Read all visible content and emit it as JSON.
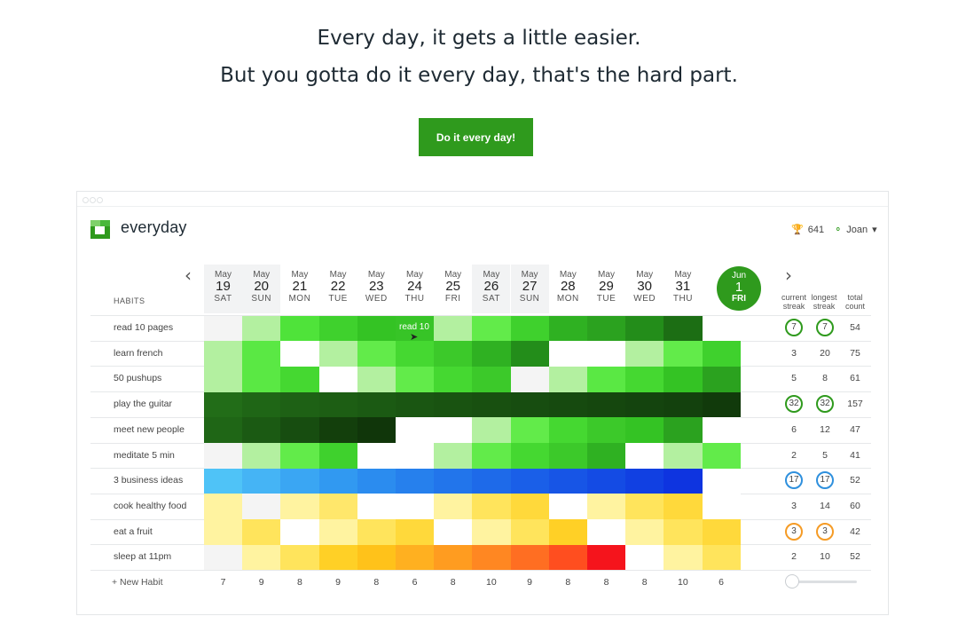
{
  "hero": {
    "line1": "Every day, it gets a little easier.",
    "line2": "But you gotta do it every day, that's the hard part.",
    "cta_label": "Do it every day!"
  },
  "app": {
    "name": "everyday",
    "score": "641",
    "user": "Joan",
    "icons": {
      "trophy": "trophy-icon",
      "user": "user-icon",
      "dropdown": "chevron-down-icon",
      "prev": "chevron-left-icon",
      "next": "chevron-right-icon"
    }
  },
  "header": {
    "habits_label": "HABITS",
    "current_streak": [
      "current",
      "streak"
    ],
    "longest_streak": [
      "longest",
      "streak"
    ],
    "total_count": [
      "total",
      "count"
    ]
  },
  "dates": [
    {
      "mon": "May",
      "day": "19",
      "dow": "SAT",
      "weekend": true
    },
    {
      "mon": "May",
      "day": "20",
      "dow": "SUN",
      "weekend": true
    },
    {
      "mon": "May",
      "day": "21",
      "dow": "MON",
      "weekend": false
    },
    {
      "mon": "May",
      "day": "22",
      "dow": "TUE",
      "weekend": false
    },
    {
      "mon": "May",
      "day": "23",
      "dow": "WED",
      "weekend": false
    },
    {
      "mon": "May",
      "day": "24",
      "dow": "THU",
      "weekend": false
    },
    {
      "mon": "May",
      "day": "25",
      "dow": "FRI",
      "weekend": false
    },
    {
      "mon": "May",
      "day": "26",
      "dow": "SAT",
      "weekend": true
    },
    {
      "mon": "May",
      "day": "27",
      "dow": "SUN",
      "weekend": true
    },
    {
      "mon": "May",
      "day": "28",
      "dow": "MON",
      "weekend": false
    },
    {
      "mon": "May",
      "day": "29",
      "dow": "TUE",
      "weekend": false
    },
    {
      "mon": "May",
      "day": "30",
      "dow": "WED",
      "weekend": false
    },
    {
      "mon": "May",
      "day": "31",
      "dow": "THU",
      "weekend": false
    },
    {
      "mon": "Jun",
      "day": "1",
      "dow": "FRI",
      "today": true
    }
  ],
  "habits": [
    {
      "name": "read 10 pages",
      "current": "7",
      "longest": "7",
      "total": "54",
      "ring": "#2f9a1d",
      "cells": [
        "#f4f4f4",
        "#b3f0a0",
        "#4fe33a",
        "#3fd12d",
        "#34c324",
        "#37c427",
        "#b3f0a0",
        "#62eb4a",
        "#3fd12d",
        "#2fb122",
        "#2ba21f",
        "#238d1a",
        "#1c6e14",
        null
      ]
    },
    {
      "name": "learn french",
      "current": "3",
      "longest": "20",
      "total": "75",
      "cells": [
        "#b3f0a0",
        "#5ae844",
        "#ffffff",
        "#b3f0a0",
        "#62eb4a",
        "#45d831",
        "#3cc92a",
        "#2fb122",
        "#238d1a",
        "#ffffff",
        "#ffffff",
        "#b3f0a0",
        "#62eb4a",
        "#3fd12d"
      ]
    },
    {
      "name": "50 pushups",
      "current": "5",
      "longest": "8",
      "total": "61",
      "cells": [
        "#b3f0a0",
        "#5ae844",
        "#45d831",
        "#ffffff",
        "#b3f0a0",
        "#62eb4a",
        "#45d831",
        "#3cc92a",
        "#f4f4f4",
        "#b3f0a0",
        "#5ae844",
        "#45d831",
        "#34c324",
        "#2ba21f"
      ]
    },
    {
      "name": "play the guitar",
      "current": "32",
      "longest": "32",
      "total": "157",
      "ring": "#2f9a1d",
      "cells": [
        "#226d18",
        "#1f6616",
        "#1e6115",
        "#1d5e14",
        "#1b5a13",
        "#1a5612",
        "#195311",
        "#185010",
        "#174d10",
        "#164a0f",
        "#15470e",
        "#14440e",
        "#13410d",
        "#113a0b"
      ]
    },
    {
      "name": "meet new people",
      "current": "6",
      "longest": "12",
      "total": "47",
      "cells": [
        "#1f6616",
        "#1b5a13",
        "#174d10",
        "#133f0c",
        "#10360a",
        "#ffffff",
        "#ffffff",
        "#b3f0a0",
        "#62eb4a",
        "#45d831",
        "#3cc92a",
        "#34c324",
        "#2ba21f",
        "#ffffff"
      ]
    },
    {
      "name": "meditate 5 min",
      "current": "2",
      "longest": "5",
      "total": "41",
      "cells": [
        "#f4f4f4",
        "#b3f0a0",
        "#62eb4a",
        "#3fd12d",
        "#ffffff",
        "#ffffff",
        "#b3f0a0",
        "#62eb4a",
        "#45d831",
        "#3cc92a",
        "#2fb122",
        "#ffffff",
        "#b3f0a0",
        "#62eb4a"
      ]
    },
    {
      "name": "3 business ideas",
      "current": "17",
      "longest": "17",
      "total": "52",
      "ring": "#2f90dd",
      "cells": [
        "#4fc3f7",
        "#45b4f5",
        "#3aa6f3",
        "#3199f1",
        "#2b8cef",
        "#2680ed",
        "#2275eb",
        "#1e6ae9",
        "#1a5fe8",
        "#1755e6",
        "#144be4",
        "#1140e2",
        "#0e34e0",
        "#ffffff"
      ]
    },
    {
      "name": "cook healthy food",
      "current": "3",
      "longest": "14",
      "total": "60",
      "cells": [
        "#fff3a0",
        "#f4f4f4",
        "#fff3a0",
        "#ffe76b",
        "#ffffff",
        "#ffffff",
        "#fff3a0",
        "#ffe45c",
        "#ffd93b",
        "#ffffff",
        "#fff3a0",
        "#ffe45c",
        "#ffd93b",
        "#ffffff"
      ]
    },
    {
      "name": "eat a fruit",
      "current": "3",
      "longest": "3",
      "total": "42",
      "ring": "#f59b25",
      "cells": [
        "#fff3a0",
        "#ffe45c",
        "#ffffff",
        "#fff3a0",
        "#ffe45c",
        "#ffd93b",
        "#ffffff",
        "#fff3a0",
        "#ffe45c",
        "#ffd026",
        "#ffffff",
        "#fff3a0",
        "#ffe45c",
        "#ffd93b"
      ]
    },
    {
      "name": "sleep at 11pm",
      "current": "2",
      "longest": "10",
      "total": "52",
      "cells": [
        "#f4f4f4",
        "#fff3a0",
        "#ffe45c",
        "#ffd026",
        "#ffc21a",
        "#ffb020",
        "#ff9c20",
        "#ff8722",
        "#ff6e22",
        "#ff4e1f",
        "#f5141c",
        "#ffffff",
        "#fff3a0",
        "#ffe45c"
      ]
    }
  ],
  "tooltip": {
    "text": "read 10"
  },
  "totals": [
    "7",
    "9",
    "8",
    "9",
    "8",
    "6",
    "8",
    "10",
    "9",
    "8",
    "8",
    "8",
    "10",
    "6"
  ],
  "footer": {
    "new_habit": "+ New Habit"
  },
  "slider": {
    "value": 0
  }
}
